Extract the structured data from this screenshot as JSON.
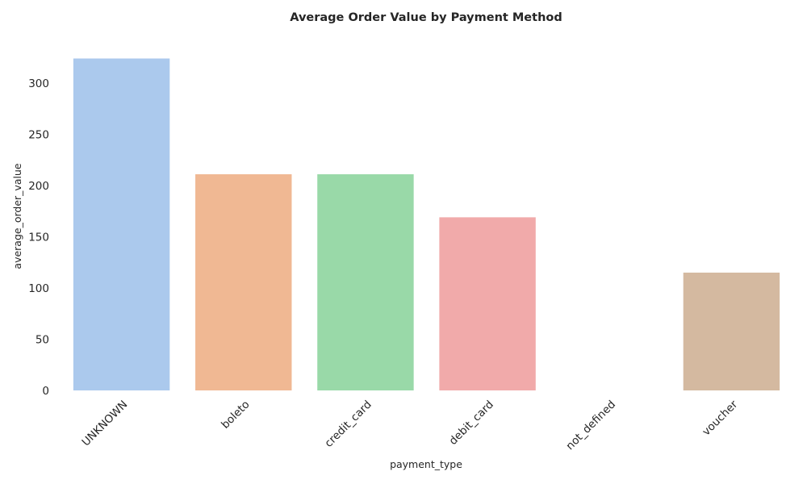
{
  "chart_data": {
    "type": "bar",
    "title": "Average Order Value by Payment Method",
    "xlabel": "payment_type",
    "ylabel": "average_order_value",
    "categories": [
      "UNKNOWN",
      "boleto",
      "credit_card",
      "debit_card",
      "not_defined",
      "voucher"
    ],
    "values": [
      324,
      211,
      211,
      169,
      0,
      115
    ],
    "colors": [
      "#abc9ed",
      "#f0b893",
      "#99d9a8",
      "#f1aaaa",
      "#c9b8e8",
      "#d4b9a0"
    ],
    "yticks": [
      0,
      50,
      100,
      150,
      200,
      250,
      300
    ],
    "ylim": [
      0,
      330
    ],
    "grid": false,
    "legend": "none"
  }
}
